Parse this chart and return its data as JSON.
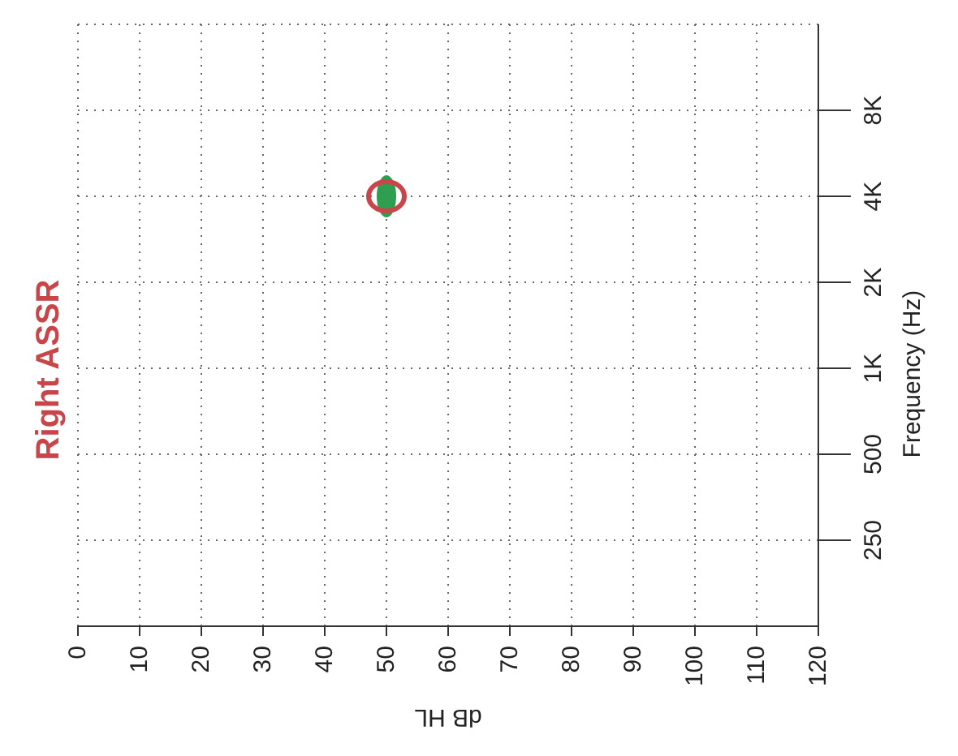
{
  "chart_data": {
    "type": "scatter",
    "title": "Right ASSR",
    "xlabel": "dB HL",
    "ylabel": "Frequency (Hz)",
    "xlim": [
      0,
      120
    ],
    "xticks": [
      0,
      10,
      20,
      30,
      40,
      50,
      60,
      70,
      80,
      90,
      100,
      110,
      120
    ],
    "ylim": [
      125,
      16000
    ],
    "yticks": [
      250,
      500,
      {
        "value": 1000,
        "label": "1K"
      },
      {
        "value": 2000,
        "label": "2K"
      },
      {
        "value": 4000,
        "label": "4K"
      },
      {
        "value": 8000,
        "label": "8K"
      }
    ],
    "log": "y",
    "grid": true,
    "marker": "circle",
    "series": [
      {
        "color": "#2e9e4f",
        "x": [
          50
        ],
        "values": [
          4000
        ]
      },
      {
        "color": "#c8464a",
        "x": [
          50
        ],
        "values": [
          4000
        ]
      }
    ]
  }
}
